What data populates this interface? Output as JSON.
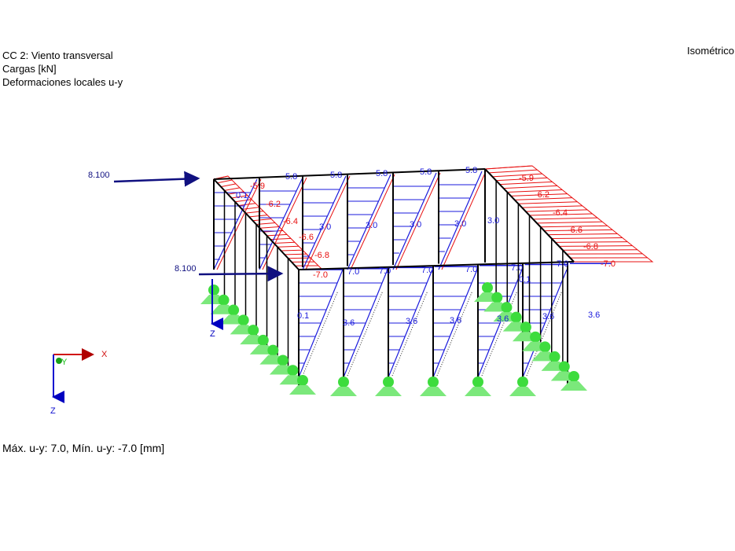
{
  "header": {
    "load_case": "CC 2: Viento transversal",
    "loads_unit": "Cargas [kN]",
    "result_type": "Deformaciones locales u-y"
  },
  "view_mode": "Isométrico",
  "footer": "Máx. u-y: 7.0, Mín. u-y: -7.0 [mm]",
  "loads": [
    "8.100",
    "8.100"
  ],
  "axes": {
    "x": "X",
    "y": "Y",
    "z": "Z"
  },
  "colors": {
    "positive": "#1a1adc",
    "negative": "#e81010",
    "members": "#000000",
    "supports": "#3ddc3d",
    "load_arrow": "#101080"
  },
  "labels": {
    "back_top": [
      "5.8",
      "5.8",
      "5.8",
      "5.8",
      "5.8"
    ],
    "back_mid": [
      "3.0",
      "3.0",
      "3.0",
      "3.0",
      "3.0"
    ],
    "front_top": [
      "7.0",
      "7.0",
      "7.0",
      "7.0",
      "7.0",
      "7.0"
    ],
    "front_mid": [
      "3.6",
      "3.6",
      "3.6",
      "3.6",
      "3.6",
      "3.6"
    ],
    "gable_left": [
      "-5.9",
      "-6.2",
      "-6.4",
      "-6.6",
      "-6.8",
      "-7.0"
    ],
    "gable_right": [
      "-5.9",
      "-6.2",
      "-6.4",
      "-6.6",
      "-6.8",
      "-7.0"
    ],
    "inner": [
      "0.1",
      "0.1",
      "0.1"
    ]
  }
}
